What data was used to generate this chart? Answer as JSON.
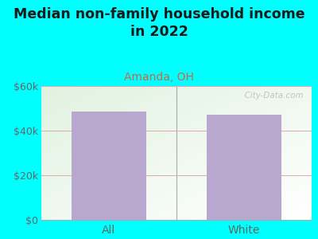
{
  "title": "Median non-family household income\nin 2022",
  "subtitle": "Amanda, OH",
  "categories": [
    "All",
    "White"
  ],
  "values": [
    48500,
    47000
  ],
  "bar_color": "#b8a8d0",
  "outer_bg": "#00FFFF",
  "title_color": "#1a1a1a",
  "title_fontsize": 12.5,
  "subtitle_color": "#cc6644",
  "subtitle_fontsize": 10,
  "tick_color": "#666666",
  "tick_fontsize": 9,
  "grid_color": "#ddaaaa",
  "ylim": [
    0,
    60000
  ],
  "yticks": [
    0,
    20000,
    40000,
    60000
  ],
  "ytick_labels": [
    "$0",
    "$20k",
    "$40k",
    "$60k"
  ],
  "watermark": "  City-Data.com",
  "bar_width": 0.55
}
